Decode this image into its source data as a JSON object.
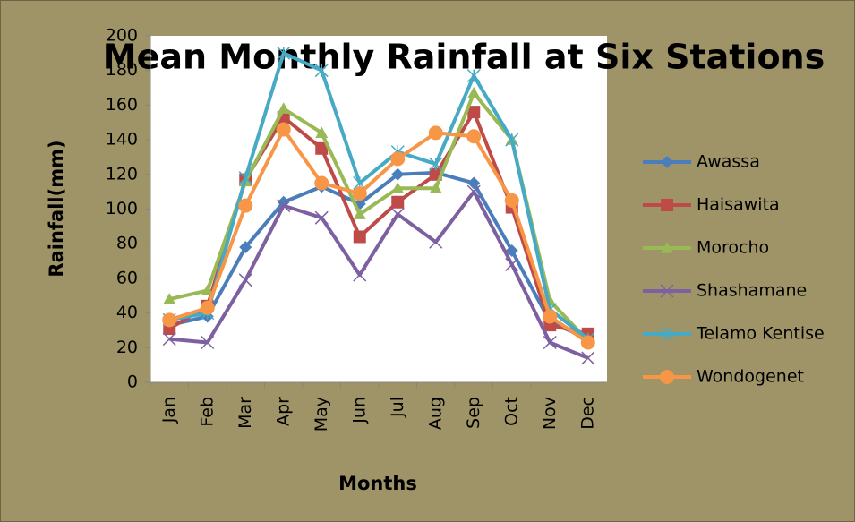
{
  "chart_data": {
    "type": "line",
    "title": "Mean Monthly Rainfall at Six Stations",
    "x_label": "Months",
    "y_label": "Rainfall(mm)",
    "categories": [
      "Jan",
      "Feb",
      "Mar",
      "Apr",
      "May",
      "Jun",
      "Jul",
      "Aug",
      "Sep",
      "Oct",
      "Nov",
      "Dec"
    ],
    "series": [
      {
        "name": "Awassa",
        "color": "#4a7ebb",
        "marker": "diamond",
        "values": [
          33,
          38,
          78,
          104,
          113,
          103,
          120,
          121,
          115,
          76,
          35,
          25
        ]
      },
      {
        "name": "Haisawita",
        "color": "#be4b48",
        "marker": "square",
        "values": [
          31,
          44,
          117,
          153,
          135,
          84,
          104,
          120,
          156,
          101,
          33,
          28
        ]
      },
      {
        "name": "Morocho",
        "color": "#98b954",
        "marker": "triangle",
        "values": [
          48,
          53,
          116,
          158,
          144,
          97,
          112,
          112,
          167,
          140,
          47,
          24
        ]
      },
      {
        "name": "Shashamane",
        "color": "#7d60a0",
        "marker": "x",
        "values": [
          25,
          23,
          59,
          102,
          95,
          62,
          97,
          81,
          110,
          68,
          23,
          14
        ]
      },
      {
        "name": "Telamo Kentise",
        "color": "#46aac5",
        "marker": "star",
        "values": [
          36,
          40,
          118,
          190,
          180,
          115,
          133,
          126,
          177,
          140,
          42,
          25
        ]
      },
      {
        "name": "Wondogenet",
        "color": "#f79646",
        "marker": "circle",
        "values": [
          36,
          43,
          102,
          146,
          115,
          109,
          129,
          144,
          142,
          105,
          38,
          23
        ]
      }
    ],
    "ylim": [
      0,
      200
    ],
    "yticks": [
      0,
      20,
      40,
      60,
      80,
      100,
      120,
      140,
      160,
      180,
      200
    ],
    "grid": false,
    "legend": "right"
  }
}
